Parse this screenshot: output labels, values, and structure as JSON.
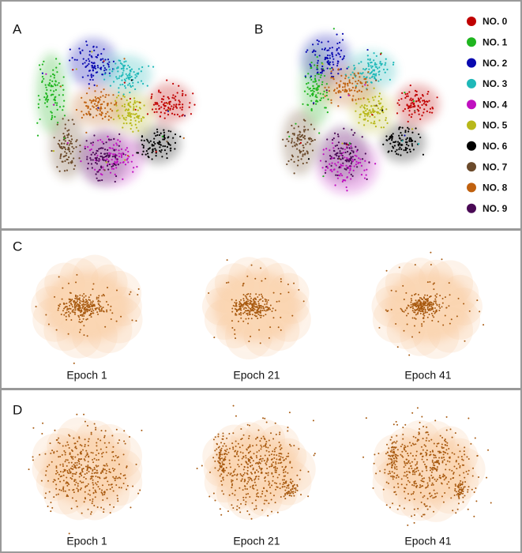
{
  "panels": {
    "a": {
      "label": "A"
    },
    "b": {
      "label": "B"
    },
    "c": {
      "label": "C",
      "captions": [
        "Epoch 1",
        "Epoch 21",
        "Epoch 41"
      ]
    },
    "d": {
      "label": "D",
      "captions": [
        "Epoch 1",
        "Epoch 21",
        "Epoch 41"
      ]
    }
  },
  "legend": [
    {
      "label": "NO. 0",
      "color": "#c00000"
    },
    {
      "label": "NO. 1",
      "color": "#1fb51f"
    },
    {
      "label": "NO. 2",
      "color": "#0a0ab0"
    },
    {
      "label": "NO. 3",
      "color": "#1fb8b8"
    },
    {
      "label": "NO. 4",
      "color": "#c010c0"
    },
    {
      "label": "NO. 5",
      "color": "#b8b81a"
    },
    {
      "label": "NO. 6",
      "color": "#000000"
    },
    {
      "label": "NO. 7",
      "color": "#6b4a2b"
    },
    {
      "label": "NO. 8",
      "color": "#c0610f"
    },
    {
      "label": "NO. 9",
      "color": "#4a0a55"
    }
  ],
  "point_color": "#a85a10",
  "halo_color": "#f5a55a"
}
